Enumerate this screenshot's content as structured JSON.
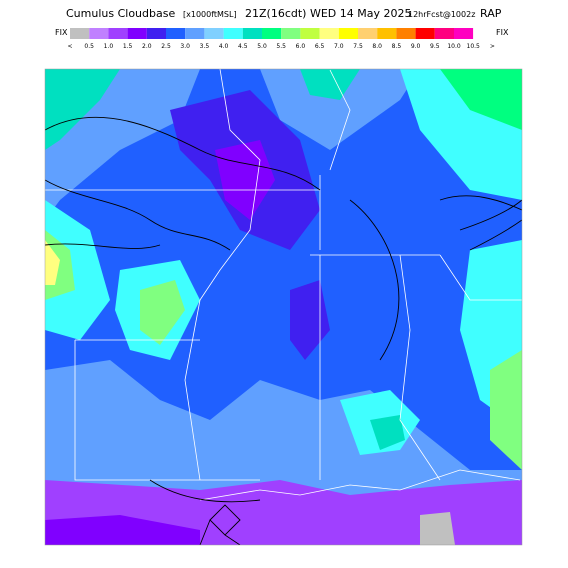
{
  "header": {
    "title": "Cumulus Cloudbase",
    "units": "[x1000ftMSL]",
    "valid": "21Z(16cdt) WED 14 May 2025",
    "forecast": "12hrFcst@1002z",
    "model": "RAP"
  },
  "colorbar": {
    "left": "FIX",
    "right": "FIX",
    "labels": [
      "<",
      "0.5",
      "1.0",
      "1.5",
      "2.0",
      "2.5",
      "3.0",
      "3.5",
      "4.0",
      "4.5",
      "5.0",
      "5.5",
      "6.0",
      "6.5",
      "7.0",
      "7.5",
      "8.0",
      "8.5",
      "9.0",
      "9.5",
      "10.0",
      "10.5",
      ">"
    ],
    "colors": [
      "#c0c0c0",
      "#c080ff",
      "#a040ff",
      "#8000ff",
      "#4020f0",
      "#2060ff",
      "#60a0ff",
      "#80d0ff",
      "#40ffff",
      "#00e0c0",
      "#00ff80",
      "#80ff80",
      "#c0ff40",
      "#ffff80",
      "#ffff00",
      "#ffd070",
      "#ffc000",
      "#ff8000",
      "#ff0000",
      "#ff0080",
      "#ff00c0",
      "#ffffff"
    ]
  }
}
